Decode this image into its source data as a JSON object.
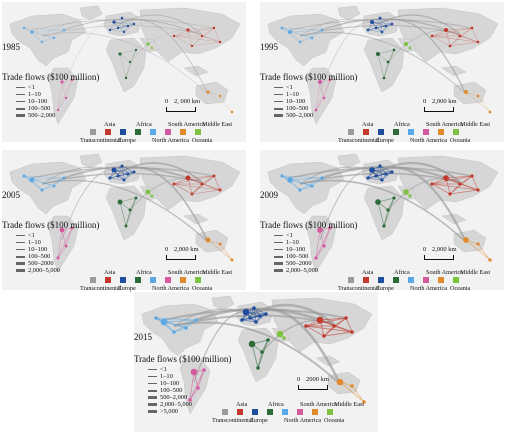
{
  "panels": [
    {
      "year": "1985",
      "trade_title": "Trade flows ($100 million)",
      "levels": [
        "<1",
        "1–10",
        "10–100",
        "100–500",
        "500–2,000"
      ],
      "scale_zero": "0",
      "scale_text": "2, 000 km",
      "regions": [
        "Transcontinental",
        "Asia",
        "Europe",
        "Africa",
        "North America",
        "South America",
        "Oceania",
        "Middle East"
      ]
    },
    {
      "year": "1995",
      "trade_title": "Trade flows ($100 million)",
      "levels": [
        "<1",
        "1–10",
        "10–100",
        "100–500",
        "500–2,000"
      ],
      "scale_zero": "0",
      "scale_text": "2,000 km",
      "regions": [
        "Transcontinental",
        "Asia",
        "Europe",
        "Africa",
        "North America",
        "South America",
        "Oceania",
        "Middle East"
      ]
    },
    {
      "year": "2005",
      "trade_title": "Trade flows ($100 million)",
      "levels": [
        "<1",
        "1–10",
        "10–100",
        "100–500",
        "500–2000",
        "2,000–5,000"
      ],
      "scale_zero": "0",
      "scale_text": "2,000 km",
      "regions": [
        "Transcontinental",
        "Asia",
        "Europe",
        "Africa",
        "North America",
        "South America",
        "Oceania",
        "Middle East"
      ]
    },
    {
      "year": "2009",
      "trade_title": "Trade flows ($100 million)",
      "levels": [
        "<1",
        "1–10",
        "10–100",
        "100–500",
        "500–2000",
        "2,000–5,000"
      ],
      "scale_zero": "0",
      "scale_text": "2,000 km",
      "regions": [
        "Transcontinental",
        "Asia",
        "Europe",
        "Africa",
        "North America",
        "South America",
        "Oceania",
        "Middle East"
      ]
    },
    {
      "year": "2015",
      "trade_title": "Trade flows ($100 million)",
      "levels": [
        "<1",
        "1–10",
        "10–100",
        "100–500",
        "500–2,000",
        "2,000–5,000",
        ">5,000"
      ],
      "scale_zero": "0",
      "scale_text": "2000 km",
      "regions": [
        "Transcontinental",
        "Asia",
        "Europe",
        "Africa",
        "North America",
        "South America",
        "Oceania",
        "Middle East"
      ]
    }
  ],
  "colors": {
    "transcontinental": "#9a9a9a",
    "asia": "#c0392b",
    "europe": "#1f4e9c",
    "africa": "#2e6b3a",
    "north_america": "#5aa9e6",
    "south_america": "#d45a9e",
    "oceania": "#e08a2e",
    "middle_east": "#7fc241",
    "land": "#d6d6d6",
    "water": "#f2f2f2"
  }
}
